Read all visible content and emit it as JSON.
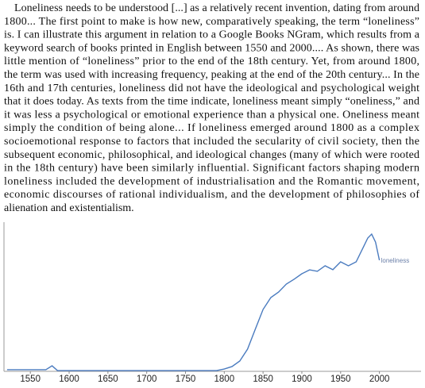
{
  "passage": {
    "lines": [
      "Loneliness needs to be understood [...] as a relatively recent invention, dating from around",
      "1800... The first point to make is how new, comparatively speaking, the term “loneliness”",
      "is. I can illustrate this argument in relation to a Google Books NGram, which results from a",
      "keyword search of books printed in English between 1550 and 2000.... As shown, there was",
      "little mention of “loneliness” prior to the end of the 18th century. Yet, from around 1800,",
      "the term was used with increasing frequency, peaking at the end of the 20th century... In the",
      "16th and 17th centuries, loneliness did not have the ideological and psychological weight",
      "that it does today. As texts from the time indicate, loneliness meant simply “oneliness,” and",
      "it was less a psychological or emotional experience than a physical one. Oneliness meant",
      "simply the condition of being alone... If loneliness emerged around 1800 as a complex",
      "socioemotional response to factors that included the secularity of civil society, then the",
      "subsequent economic, philosophical, and ideological changes (many of which were rooted",
      "in the 18th century) have been similarly influential. Significant factors shaping modern",
      "loneliness included the development of industrialisation and the Romantic movement,",
      "economic discourses of rational individualism, and the development of philosophies of",
      "alienation and existentialism."
    ]
  },
  "chart_data": {
    "type": "line",
    "x": [
      1520,
      1570,
      1578,
      1585,
      1600,
      1650,
      1700,
      1750,
      1790,
      1800,
      1810,
      1820,
      1830,
      1840,
      1850,
      1860,
      1870,
      1880,
      1890,
      1900,
      1910,
      1920,
      1930,
      1940,
      1950,
      1960,
      1970,
      1980,
      1985,
      1990,
      1995,
      2000
    ],
    "series": [
      {
        "name": "loneliness",
        "color": "#4a7bbf",
        "values": [
          1.1,
          1.1,
          3.8,
          0.5,
          0.5,
          0.5,
          0.5,
          0.5,
          0.5,
          1.6,
          3.3,
          7.1,
          15.3,
          29,
          42.6,
          50.8,
          54.6,
          60.1,
          63.4,
          67.2,
          69.9,
          68.9,
          72.7,
          70,
          75.4,
          72.7,
          75.4,
          86.3,
          91.8,
          94.5,
          89,
          76.5
        ]
      }
    ],
    "xlim": [
      1516,
      2026
    ],
    "xticks": [
      1550,
      1600,
      1650,
      1700,
      1750,
      1800,
      1850,
      1900,
      1950,
      2000
    ],
    "ylim": [
      0,
      100
    ]
  }
}
